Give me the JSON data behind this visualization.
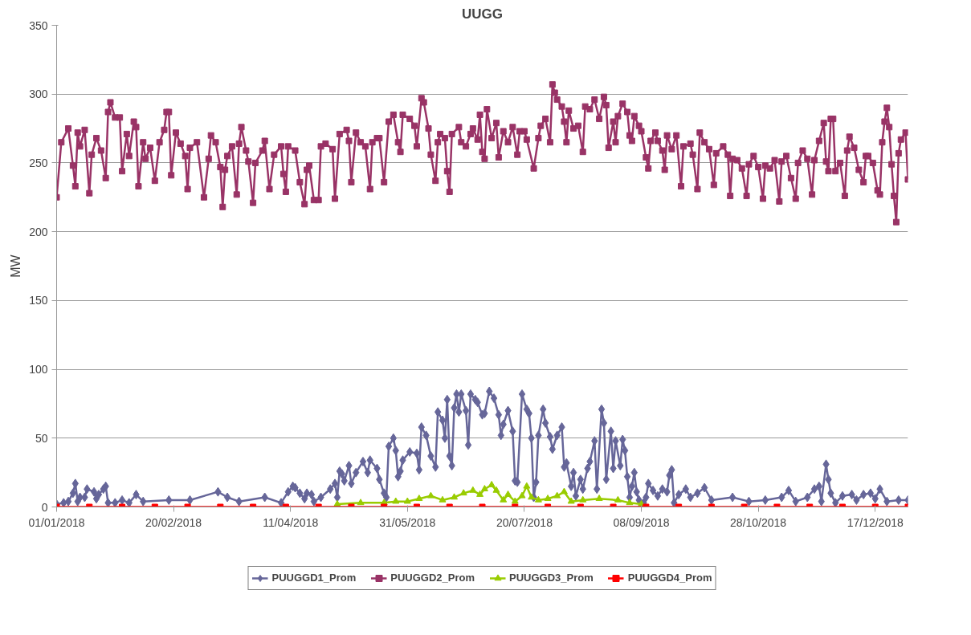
{
  "chart_data": {
    "type": "line",
    "title": "UUGG",
    "ylabel": "MW",
    "xlim": [
      "2018-01-01",
      "2018-12-31"
    ],
    "xticks": [
      {
        "value": "2018-01-01",
        "label": "01/01/2018"
      },
      {
        "value": "2018-02-20",
        "label": "20/02/2018"
      },
      {
        "value": "2018-04-11",
        "label": "11/04/2018"
      },
      {
        "value": "2018-05-31",
        "label": "31/05/2018"
      },
      {
        "value": "2018-07-20",
        "label": "20/07/2018"
      },
      {
        "value": "2018-09-08",
        "label": "08/09/2018"
      },
      {
        "value": "2018-10-28",
        "label": "28/10/2018"
      },
      {
        "value": "2018-12-17",
        "label": "17/12/2018"
      }
    ],
    "ylim": [
      0,
      350
    ],
    "yticks": [
      0,
      50,
      100,
      150,
      200,
      250,
      300,
      350
    ],
    "grid": "y",
    "legend": "bottom",
    "line_style": "solid",
    "series": [
      {
        "name": "PUUGGD1_Prom",
        "color": "#666699",
        "marker": "diamond",
        "x": [
          "2018-01-01",
          "2018-01-04",
          "2018-01-06",
          "2018-01-08",
          "2018-01-09",
          "2018-01-10",
          "2018-01-11",
          "2018-01-13",
          "2018-01-14",
          "2018-01-17",
          "2018-01-18",
          "2018-01-19",
          "2018-01-21",
          "2018-01-22",
          "2018-01-23",
          "2018-01-26",
          "2018-01-29",
          "2018-02-01",
          "2018-02-04",
          "2018-02-07",
          "2018-02-18",
          "2018-02-27",
          "2018-03-11",
          "2018-03-15",
          "2018-03-20",
          "2018-03-31",
          "2018-04-07",
          "2018-04-10",
          "2018-04-12",
          "2018-04-13",
          "2018-04-15",
          "2018-04-17",
          "2018-04-18",
          "2018-04-20",
          "2018-04-21",
          "2018-04-24",
          "2018-04-28",
          "2018-04-30",
          "2018-05-01",
          "2018-05-02",
          "2018-05-03",
          "2018-05-04",
          "2018-05-06",
          "2018-05-07",
          "2018-05-09",
          "2018-05-12",
          "2018-05-14",
          "2018-05-15",
          "2018-05-18",
          "2018-05-19",
          "2018-05-21",
          "2018-05-22",
          "2018-05-23",
          "2018-05-25",
          "2018-05-26",
          "2018-05-27",
          "2018-05-28",
          "2018-05-29",
          "2018-06-01",
          "2018-06-04",
          "2018-06-05",
          "2018-06-06",
          "2018-06-08",
          "2018-06-10",
          "2018-06-12",
          "2018-06-13",
          "2018-06-15",
          "2018-06-16",
          "2018-06-17",
          "2018-06-18",
          "2018-06-19",
          "2018-06-20",
          "2018-06-21",
          "2018-06-22",
          "2018-06-23",
          "2018-06-25",
          "2018-06-26",
          "2018-06-27",
          "2018-06-29",
          "2018-06-30",
          "2018-07-02",
          "2018-07-03",
          "2018-07-05",
          "2018-07-07",
          "2018-07-09",
          "2018-07-10",
          "2018-07-11",
          "2018-07-13",
          "2018-07-15",
          "2018-07-16",
          "2018-07-17",
          "2018-07-19",
          "2018-07-21",
          "2018-07-22",
          "2018-07-23",
          "2018-07-24",
          "2018-07-25",
          "2018-07-26",
          "2018-07-28",
          "2018-07-29",
          "2018-07-31",
          "2018-08-01",
          "2018-08-03",
          "2018-08-05",
          "2018-08-06",
          "2018-08-07",
          "2018-08-09",
          "2018-08-10",
          "2018-08-11",
          "2018-08-13",
          "2018-08-14",
          "2018-08-16",
          "2018-08-17",
          "2018-08-19",
          "2018-08-20",
          "2018-08-22",
          "2018-08-23",
          "2018-08-24",
          "2018-08-26",
          "2018-08-27",
          "2018-08-28",
          "2018-08-30",
          "2018-08-31",
          "2018-09-01",
          "2018-09-02",
          "2018-09-03",
          "2018-09-04",
          "2018-09-05",
          "2018-09-06",
          "2018-09-07",
          "2018-09-09",
          "2018-09-10",
          "2018-09-11",
          "2018-09-13",
          "2018-09-15",
          "2018-09-17",
          "2018-09-19",
          "2018-09-20",
          "2018-09-21",
          "2018-09-22",
          "2018-09-24",
          "2018-09-27",
          "2018-09-29",
          "2018-10-02",
          "2018-10-05",
          "2018-10-08",
          "2018-10-17",
          "2018-10-24",
          "2018-10-31",
          "2018-11-07",
          "2018-11-10",
          "2018-11-13",
          "2018-11-18",
          "2018-11-21",
          "2018-11-23",
          "2018-11-24",
          "2018-11-26",
          "2018-11-27",
          "2018-11-28",
          "2018-11-30",
          "2018-12-03",
          "2018-12-07",
          "2018-12-09",
          "2018-12-12",
          "2018-12-15",
          "2018-12-17",
          "2018-12-19",
          "2018-12-22",
          "2018-12-27",
          "2018-12-31"
        ],
        "values": [
          2,
          3,
          4,
          10,
          17,
          4,
          7,
          7,
          13,
          11,
          6,
          9,
          13,
          15,
          3,
          3,
          5,
          3,
          9,
          4,
          5,
          5,
          11,
          7,
          4,
          7,
          3,
          11,
          15,
          14,
          10,
          6,
          10,
          9,
          4,
          7,
          13,
          17,
          7,
          26,
          24,
          19,
          30,
          17,
          25,
          33,
          25,
          34,
          28,
          20,
          10,
          7,
          44,
          50,
          41,
          22,
          26,
          34,
          40,
          39,
          27,
          58,
          52,
          37,
          29,
          69,
          63,
          50,
          78,
          37,
          30,
          72,
          82,
          69,
          82,
          70,
          45,
          82,
          78,
          76,
          67,
          68,
          84,
          79,
          67,
          52,
          60,
          70,
          55,
          19,
          18,
          82,
          71,
          68,
          50,
          7,
          18,
          52,
          71,
          61,
          51,
          42,
          52,
          58,
          29,
          32,
          15,
          25,
          8,
          20,
          13,
          28,
          33,
          48,
          13,
          71,
          61,
          20,
          55,
          28,
          48,
          30,
          49,
          41,
          22,
          7,
          15,
          25,
          11,
          5,
          3,
          7,
          17,
          12,
          8,
          13,
          11,
          23,
          27,
          3,
          9,
          13,
          7,
          10,
          14,
          5,
          7,
          4,
          5,
          7,
          12,
          4,
          7,
          13,
          15,
          4,
          31,
          20,
          10,
          3,
          8,
          9,
          5,
          9,
          10,
          6,
          13,
          4,
          5,
          5
        ]
      },
      {
        "name": "PUUGGD2_Prom",
        "color": "#993366",
        "marker": "square",
        "x": [
          "2018-01-01",
          "2018-01-03",
          "2018-01-06",
          "2018-01-08",
          "2018-01-09",
          "2018-01-10",
          "2018-01-11",
          "2018-01-13",
          "2018-01-15",
          "2018-01-16",
          "2018-01-18",
          "2018-01-20",
          "2018-01-22",
          "2018-01-23",
          "2018-01-24",
          "2018-01-26",
          "2018-01-28",
          "2018-01-29",
          "2018-01-31",
          "2018-02-01",
          "2018-02-03",
          "2018-02-04",
          "2018-02-05",
          "2018-02-07",
          "2018-02-08",
          "2018-02-10",
          "2018-02-12",
          "2018-02-14",
          "2018-02-16",
          "2018-02-17",
          "2018-02-18",
          "2018-02-19",
          "2018-02-21",
          "2018-02-23",
          "2018-02-25",
          "2018-02-26",
          "2018-02-27",
          "2018-03-02",
          "2018-03-05",
          "2018-03-07",
          "2018-03-08",
          "2018-03-10",
          "2018-03-12",
          "2018-03-13",
          "2018-03-14",
          "2018-03-15",
          "2018-03-17",
          "2018-03-19",
          "2018-03-20",
          "2018-03-21",
          "2018-03-23",
          "2018-03-24",
          "2018-03-26",
          "2018-03-27",
          "2018-03-30",
          "2018-03-31",
          "2018-04-02",
          "2018-04-04",
          "2018-04-07",
          "2018-04-08",
          "2018-04-09",
          "2018-04-10",
          "2018-04-13",
          "2018-04-15",
          "2018-04-17",
          "2018-04-18",
          "2018-04-19",
          "2018-04-21",
          "2018-04-23",
          "2018-04-24",
          "2018-04-26",
          "2018-04-29",
          "2018-04-30",
          "2018-05-02",
          "2018-05-05",
          "2018-05-06",
          "2018-05-07",
          "2018-05-09",
          "2018-05-11",
          "2018-05-13",
          "2018-05-15",
          "2018-05-16",
          "2018-05-18",
          "2018-05-19",
          "2018-05-21",
          "2018-05-23",
          "2018-05-25",
          "2018-05-27",
          "2018-05-28",
          "2018-05-29",
          "2018-06-01",
          "2018-06-03",
          "2018-06-04",
          "2018-06-06",
          "2018-06-07",
          "2018-06-09",
          "2018-06-10",
          "2018-06-12",
          "2018-06-13",
          "2018-06-14",
          "2018-06-16",
          "2018-06-17",
          "2018-06-18",
          "2018-06-19",
          "2018-06-22",
          "2018-06-23",
          "2018-06-25",
          "2018-06-27",
          "2018-06-28",
          "2018-06-30",
          "2018-07-01",
          "2018-07-02",
          "2018-07-03",
          "2018-07-04",
          "2018-07-06",
          "2018-07-08",
          "2018-07-09",
          "2018-07-11",
          "2018-07-13",
          "2018-07-15",
          "2018-07-17",
          "2018-07-18",
          "2018-07-20",
          "2018-07-21",
          "2018-07-24",
          "2018-07-26",
          "2018-07-27",
          "2018-07-29",
          "2018-07-31",
          "2018-08-01",
          "2018-08-02",
          "2018-08-03",
          "2018-08-05",
          "2018-08-06",
          "2018-08-07",
          "2018-08-08",
          "2018-08-10",
          "2018-08-12",
          "2018-08-14",
          "2018-08-15",
          "2018-08-17",
          "2018-08-19",
          "2018-08-21",
          "2018-08-23",
          "2018-08-24",
          "2018-08-25",
          "2018-08-27",
          "2018-08-28",
          "2018-08-29",
          "2018-08-31",
          "2018-09-02",
          "2018-09-03",
          "2018-09-04",
          "2018-09-05",
          "2018-09-07",
          "2018-09-08",
          "2018-09-10",
          "2018-09-11",
          "2018-09-12",
          "2018-09-14",
          "2018-09-15",
          "2018-09-17",
          "2018-09-18",
          "2018-09-19",
          "2018-09-21",
          "2018-09-23",
          "2018-09-25",
          "2018-09-26",
          "2018-09-29",
          "2018-09-30",
          "2018-10-02",
          "2018-10-03",
          "2018-10-05",
          "2018-10-07",
          "2018-10-09",
          "2018-10-10",
          "2018-10-13",
          "2018-10-15",
          "2018-10-16",
          "2018-10-17",
          "2018-10-19",
          "2018-10-21",
          "2018-10-23",
          "2018-10-24",
          "2018-10-26",
          "2018-10-28",
          "2018-10-30",
          "2018-10-31",
          "2018-11-02",
          "2018-11-04",
          "2018-11-06",
          "2018-11-07",
          "2018-11-09",
          "2018-11-11",
          "2018-11-13",
          "2018-11-14",
          "2018-11-16",
          "2018-11-18",
          "2018-11-20",
          "2018-11-21",
          "2018-11-23",
          "2018-11-25",
          "2018-11-26",
          "2018-11-27",
          "2018-11-28",
          "2018-11-29",
          "2018-11-30",
          "2018-12-02",
          "2018-12-04",
          "2018-12-05",
          "2018-12-06",
          "2018-12-08",
          "2018-12-10",
          "2018-12-12",
          "2018-12-13",
          "2018-12-14",
          "2018-12-16",
          "2018-12-18",
          "2018-12-19",
          "2018-12-20",
          "2018-12-21",
          "2018-12-22",
          "2018-12-23",
          "2018-12-24",
          "2018-12-25",
          "2018-12-26",
          "2018-12-27",
          "2018-12-28",
          "2018-12-30",
          "2018-12-31"
        ],
        "values": [
          225,
          265,
          275,
          248,
          233,
          272,
          262,
          274,
          228,
          256,
          268,
          259,
          239,
          287,
          294,
          283,
          283,
          244,
          271,
          255,
          280,
          276,
          233,
          265,
          253,
          261,
          237,
          265,
          274,
          287,
          287,
          241,
          272,
          264,
          255,
          231,
          261,
          265,
          225,
          253,
          270,
          265,
          247,
          218,
          245,
          255,
          262,
          227,
          264,
          276,
          259,
          251,
          221,
          250,
          259,
          266,
          231,
          256,
          262,
          242,
          229,
          262,
          259,
          236,
          220,
          245,
          248,
          223,
          223,
          262,
          264,
          260,
          224,
          271,
          274,
          266,
          236,
          272,
          265,
          262,
          231,
          265,
          268,
          268,
          236,
          280,
          285,
          265,
          258,
          285,
          282,
          277,
          262,
          297,
          294,
          275,
          256,
          237,
          265,
          271,
          268,
          244,
          229,
          271,
          276,
          265,
          262,
          271,
          275,
          267,
          285,
          258,
          253,
          289,
          268,
          279,
          254,
          273,
          265,
          276,
          256,
          273,
          273,
          267,
          246,
          268,
          277,
          282,
          265,
          307,
          301,
          296,
          291,
          280,
          265,
          288,
          275,
          277,
          258,
          291,
          289,
          296,
          282,
          298,
          292,
          261,
          280,
          265,
          284,
          293,
          287,
          270,
          266,
          284,
          277,
          273,
          254,
          246,
          266,
          272,
          266,
          259,
          245,
          270,
          260,
          270,
          233,
          262,
          264,
          256,
          231,
          272,
          265,
          260,
          234,
          257,
          262,
          256,
          226,
          253,
          252,
          246,
          226,
          249,
          255,
          247,
          224,
          248,
          246,
          252,
          222,
          251,
          255,
          239,
          224,
          250,
          259,
          253,
          227,
          252,
          266,
          279,
          251,
          244,
          282,
          282,
          244,
          250,
          226,
          259,
          269,
          261,
          245,
          236,
          255,
          255,
          250,
          230,
          227,
          265,
          280,
          290,
          276,
          249,
          226,
          207,
          257,
          267,
          272,
          238
        ]
      },
      {
        "name": "PUUGGD3_Prom",
        "color": "#99cc00",
        "marker": "triangle",
        "x": [
          "2018-05-01",
          "2018-05-11",
          "2018-05-21",
          "2018-05-26",
          "2018-05-31",
          "2018-06-05",
          "2018-06-10",
          "2018-06-15",
          "2018-06-20",
          "2018-06-24",
          "2018-06-28",
          "2018-07-01",
          "2018-07-03",
          "2018-07-06",
          "2018-07-08",
          "2018-07-11",
          "2018-07-13",
          "2018-07-16",
          "2018-07-19",
          "2018-07-21",
          "2018-07-23",
          "2018-07-26",
          "2018-07-30",
          "2018-08-03",
          "2018-08-06",
          "2018-08-09",
          "2018-08-14",
          "2018-08-21",
          "2018-08-29",
          "2018-09-03",
          "2018-09-08"
        ],
        "values": [
          2,
          3,
          3,
          4,
          4,
          6,
          8,
          5,
          7,
          10,
          12,
          9,
          13,
          16,
          12,
          5,
          9,
          4,
          8,
          15,
          7,
          5,
          6,
          8,
          11,
          4,
          5,
          6,
          5,
          3,
          2
        ]
      },
      {
        "name": "PUUGGD4_Prom",
        "color": "#ff0000",
        "marker": "square",
        "x": [
          "2018-01-01",
          "2018-01-15",
          "2018-01-29",
          "2018-02-12",
          "2018-02-26",
          "2018-03-12",
          "2018-03-26",
          "2018-04-09",
          "2018-04-23",
          "2018-05-07",
          "2018-05-21",
          "2018-06-04",
          "2018-06-18",
          "2018-07-02",
          "2018-07-16",
          "2018-07-30",
          "2018-08-13",
          "2018-08-27",
          "2018-09-10",
          "2018-09-24",
          "2018-10-08",
          "2018-10-22",
          "2018-11-05",
          "2018-11-19",
          "2018-12-03",
          "2018-12-17",
          "2018-12-31"
        ],
        "values": [
          0,
          0,
          0,
          0,
          0,
          0,
          0,
          0,
          0,
          0,
          0,
          0,
          0,
          0,
          0,
          0,
          0,
          0,
          0,
          0,
          0,
          0,
          0,
          0,
          0,
          0,
          0
        ]
      }
    ]
  }
}
